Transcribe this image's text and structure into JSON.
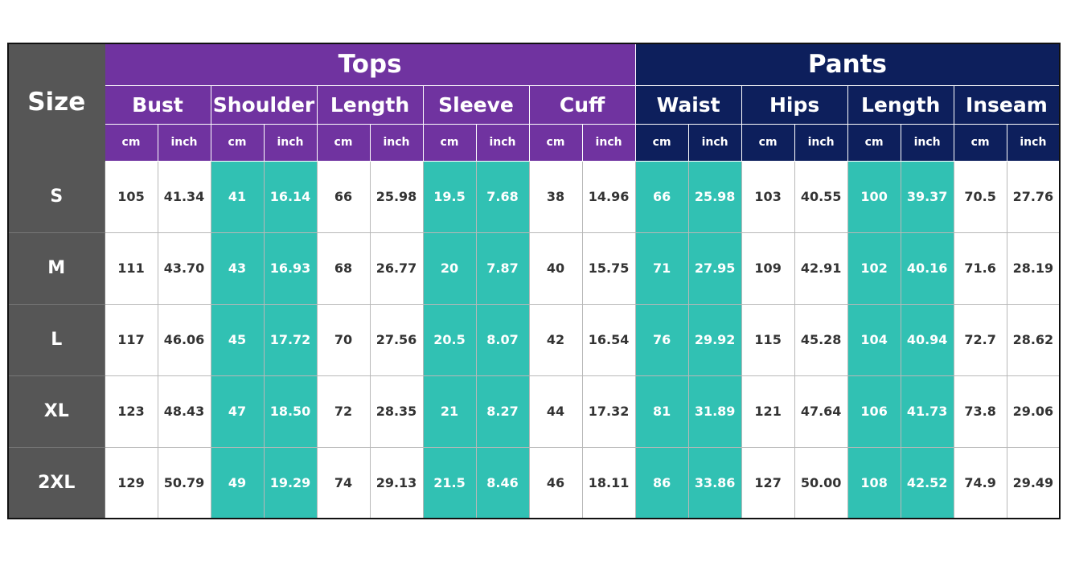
{
  "header": {
    "size_label": "Size",
    "groups": {
      "tops": "Tops",
      "pants": "Pants"
    },
    "measurements": [
      {
        "label": "Bust",
        "group": "tops"
      },
      {
        "label": "Shoulder",
        "group": "tops"
      },
      {
        "label": "Length",
        "group": "tops"
      },
      {
        "label": "Sleeve",
        "group": "tops"
      },
      {
        "label": "Cuff",
        "group": "tops"
      },
      {
        "label": "Waist",
        "group": "pants"
      },
      {
        "label": "Hips",
        "group": "pants"
      },
      {
        "label": "Length",
        "group": "pants"
      },
      {
        "label": "Inseam",
        "group": "pants"
      }
    ],
    "units": [
      "cm",
      "inch"
    ]
  },
  "highlighted_columns": [
    1,
    3,
    5,
    7
  ],
  "rows": [
    {
      "size": "S",
      "values": [
        "105",
        "41.34",
        "41",
        "16.14",
        "66",
        "25.98",
        "19.5",
        "7.68",
        "38",
        "14.96",
        "66",
        "25.98",
        "103",
        "40.55",
        "100",
        "39.37",
        "70.5",
        "27.76"
      ]
    },
    {
      "size": "M",
      "values": [
        "111",
        "43.70",
        "43",
        "16.93",
        "68",
        "26.77",
        "20",
        "7.87",
        "40",
        "15.75",
        "71",
        "27.95",
        "109",
        "42.91",
        "102",
        "40.16",
        "71.6",
        "28.19"
      ]
    },
    {
      "size": "L",
      "values": [
        "117",
        "46.06",
        "45",
        "17.72",
        "70",
        "27.56",
        "20.5",
        "8.07",
        "42",
        "16.54",
        "76",
        "29.92",
        "115",
        "45.28",
        "104",
        "40.94",
        "72.7",
        "28.62"
      ]
    },
    {
      "size": "XL",
      "values": [
        "123",
        "48.43",
        "47",
        "18.50",
        "72",
        "28.35",
        "21",
        "8.27",
        "44",
        "17.32",
        "81",
        "31.89",
        "121",
        "47.64",
        "106",
        "41.73",
        "73.8",
        "29.06"
      ]
    },
    {
      "size": "2XL",
      "values": [
        "129",
        "50.79",
        "49",
        "19.29",
        "74",
        "29.13",
        "21.5",
        "8.46",
        "46",
        "18.11",
        "86",
        "33.86",
        "127",
        "50.00",
        "108",
        "42.52",
        "74.9",
        "29.49"
      ]
    }
  ],
  "colors": {
    "tops_header": "#7033a0",
    "pants_header": "#0d1f5c",
    "size_column": "#565656",
    "highlight": "#31c1b3",
    "value_text": "#333333"
  }
}
